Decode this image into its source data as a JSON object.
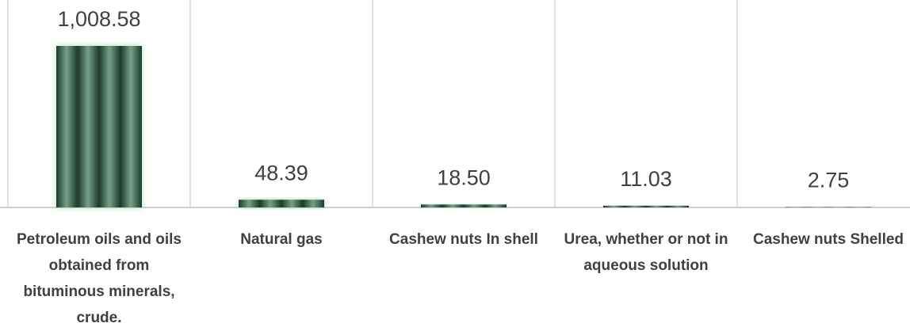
{
  "chart_data": {
    "type": "bar",
    "categories": [
      "Petroleum oils and oils obtained from bituminous minerals, crude.",
      "Natural gas",
      "Cashew nuts In shell",
      "Urea, whether or not in aqueous solution",
      "Cashew nuts Shelled"
    ],
    "values": [
      1008.58,
      48.39,
      18.5,
      11.03,
      2.75
    ],
    "value_labels": [
      "1,008.58",
      "48.39",
      "18.50",
      "11.03",
      "2.75"
    ],
    "color": "#2f5a43"
  }
}
